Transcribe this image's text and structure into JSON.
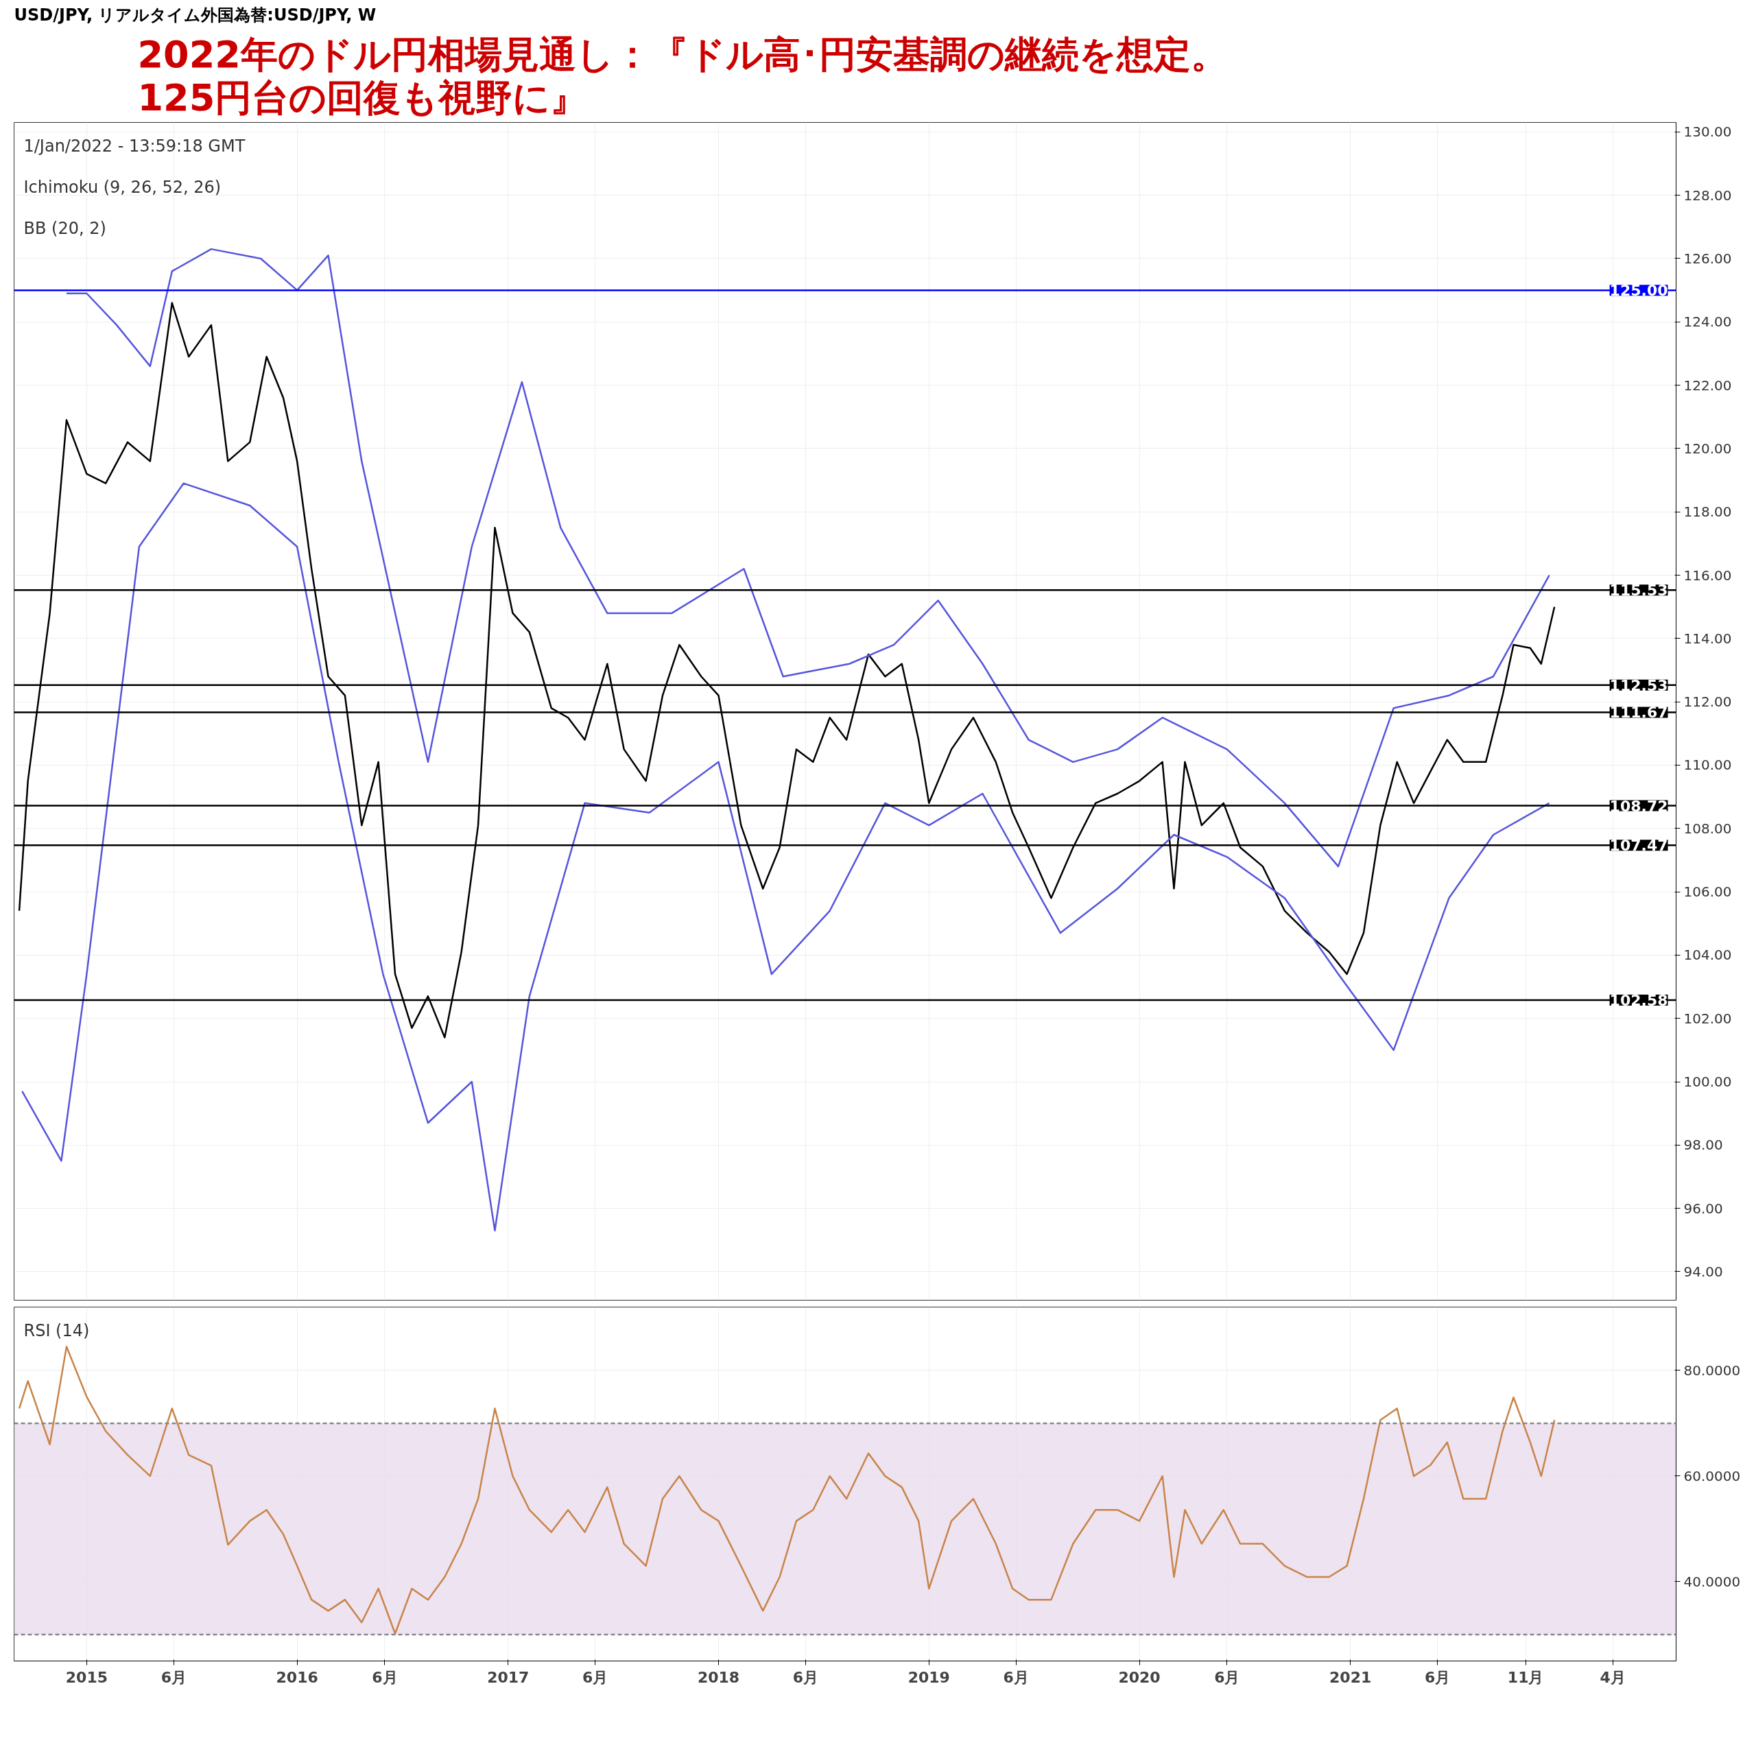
{
  "chart_data": [
    {
      "type": "line",
      "title": "2022年のドル円相場見通し：『ドル高･円安基調の継続を想定。\n125円台の回復も視野に』",
      "subtitle": "USD/JPY, リアルタイム外国為替:USD/JPY, W",
      "annotations": [
        "1/Jan/2022 - 13:59:18 GMT",
        "Ichimoku (9, 26, 52, 26)",
        "BB (20, 2)"
      ],
      "xlim": [
        "2014-08-28",
        "2022-07-20"
      ],
      "xticks": [
        {
          "value": "2015-01-01",
          "label": null
        },
        {
          "value": "2015-06-01",
          "label": null
        },
        {
          "value": "2016-01-01",
          "label": null
        },
        {
          "value": "2016-06-01",
          "label": null
        },
        {
          "value": "2017-01-01",
          "label": null
        },
        {
          "value": "2017-06-01",
          "label": null
        },
        {
          "value": "2018-01-01",
          "label": null
        },
        {
          "value": "2018-06-01",
          "label": null
        },
        {
          "value": "2019-01-01",
          "label": null
        },
        {
          "value": "2019-06-01",
          "label": null
        },
        {
          "value": "2020-01-01",
          "label": null
        },
        {
          "value": "2020-06-01",
          "label": null
        },
        {
          "value": "2021-01-01",
          "label": null
        },
        {
          "value": "2021-06-01",
          "label": null
        },
        {
          "value": "2021-11-01",
          "label": null
        },
        {
          "value": "2022-04-01",
          "label": null
        }
      ],
      "ylim": [
        93.1,
        130.3
      ],
      "yticks": [
        {
          "value": 94,
          "label": "94.00"
        },
        {
          "value": 96,
          "label": "96.00"
        },
        {
          "value": 98,
          "label": "98.00"
        },
        {
          "value": 100,
          "label": "100.00"
        },
        {
          "value": 102,
          "label": "102.00"
        },
        {
          "value": 104,
          "label": "104.00"
        },
        {
          "value": 106,
          "label": "106.00"
        },
        {
          "value": 108,
          "label": "108.00"
        },
        {
          "value": 110,
          "label": "110.00"
        },
        {
          "value": 112,
          "label": "112.00"
        },
        {
          "value": 114,
          "label": "114.00"
        },
        {
          "value": 116,
          "label": "116.00"
        },
        {
          "value": 118,
          "label": "118.00"
        },
        {
          "value": 120,
          "label": "120.00"
        },
        {
          "value": 122,
          "label": "122.00"
        },
        {
          "value": 124,
          "label": "124.00"
        },
        {
          "value": 126,
          "label": "126.00"
        },
        {
          "value": 128,
          "label": "128.00"
        },
        {
          "value": 130,
          "label": "130.00"
        }
      ],
      "tick_labels": "y",
      "grid": true,
      "ref_lines": [
        {
          "axis": "y",
          "value": 125,
          "label": "125.00",
          "color": "#0000ff"
        },
        {
          "axis": "y",
          "value": 115.53,
          "label": "115.53",
          "color": "#000000"
        },
        {
          "axis": "y",
          "value": 112.53,
          "label": "112.53",
          "color": "#000000"
        },
        {
          "axis": "y",
          "value": 111.67,
          "label": "111.67",
          "color": "#000000"
        },
        {
          "axis": "y",
          "value": 108.72,
          "label": "108.72",
          "color": "#000000"
        },
        {
          "axis": "y",
          "value": 107.47,
          "label": "107.47",
          "color": "#000000"
        },
        {
          "axis": "y",
          "value": 102.58,
          "label": "102.58",
          "color": "#000000"
        }
      ],
      "series": [
        {
          "color": "#000000",
          "x": [
            "2014-09-06",
            "2014-09-21",
            "2014-10-29",
            "2014-11-27",
            "2015-01-01",
            "2015-02-03",
            "2015-03-13",
            "2015-04-21",
            "2015-05-29",
            "2015-06-27",
            "2015-08-05",
            "2015-09-03",
            "2015-10-11",
            "2015-11-09",
            "2015-12-08",
            "2016-01-01",
            "2016-01-26",
            "2016-02-24",
            "2016-03-24",
            "2016-04-22",
            "2016-05-21",
            "2016-06-19",
            "2016-07-18",
            "2016-08-15",
            "2016-09-13",
            "2016-10-12",
            "2016-11-10",
            "2016-12-09",
            "2017-01-09",
            "2017-02-07",
            "2017-03-17",
            "2017-04-15",
            "2017-05-14",
            "2017-06-22",
            "2017-07-21",
            "2017-08-28",
            "2017-09-26",
            "2017-10-25",
            "2017-12-02",
            "2018-01-01",
            "2018-02-09",
            "2018-03-19",
            "2018-04-17",
            "2018-05-16",
            "2018-06-14",
            "2018-07-13",
            "2018-08-11",
            "2018-09-18",
            "2018-10-17",
            "2018-11-15",
            "2018-12-14",
            "2019-01-01",
            "2019-02-09",
            "2019-03-19",
            "2019-04-27",
            "2019-05-26",
            "2019-06-23",
            "2019-08-01",
            "2019-09-08",
            "2019-10-17",
            "2019-11-24",
            "2020-01-01",
            "2020-02-10",
            "2020-03-01",
            "2020-03-20",
            "2020-04-18",
            "2020-05-26",
            "2020-06-24",
            "2020-08-02",
            "2020-09-09",
            "2020-10-18",
            "2020-11-25",
            "2020-12-26",
            "2021-01-24",
            "2021-02-22",
            "2021-03-23",
            "2021-04-21",
            "2021-05-20",
            "2021-06-18",
            "2021-07-16",
            "2021-08-24",
            "2021-09-22",
            "2021-10-11",
            "2021-11-09",
            "2021-11-28",
            "2021-12-21"
          ],
          "values": [
            105.4,
            109.5,
            114.8,
            120.9,
            119.2,
            118.9,
            120.2,
            119.6,
            124.6,
            122.9,
            123.9,
            119.6,
            120.2,
            122.9,
            121.6,
            119.6,
            116.2,
            112.8,
            112.2,
            108.1,
            110.1,
            103.4,
            101.7,
            102.7,
            101.4,
            104.1,
            108.1,
            117.5,
            114.8,
            114.2,
            111.8,
            111.5,
            110.8,
            113.2,
            110.5,
            109.5,
            112.2,
            113.8,
            112.8,
            112.2,
            108.1,
            106.1,
            107.4,
            110.5,
            110.1,
            111.5,
            110.8,
            113.5,
            112.8,
            113.2,
            110.8,
            108.8,
            110.5,
            111.5,
            110.1,
            108.5,
            107.4,
            105.8,
            107.4,
            108.8,
            109.1,
            109.5,
            110.1,
            106.1,
            110.1,
            108.1,
            108.8,
            107.4,
            106.8,
            105.4,
            104.7,
            104.1,
            103.4,
            104.7,
            108.1,
            110.1,
            108.8,
            109.8,
            110.8,
            110.1,
            110.1,
            112.2,
            113.8,
            113.7,
            113.2,
            115.0
          ]
        },
        {
          "color": "#5555dd",
          "x": [
            "2014-11-27",
            "2015-01-01",
            "2015-02-22",
            "2015-04-21",
            "2015-05-29",
            "2015-08-05",
            "2015-10-30",
            "2016-01-01",
            "2016-02-24",
            "2016-04-22",
            "2016-08-15",
            "2016-10-30",
            "2017-01-25",
            "2017-04-02",
            "2017-06-22",
            "2017-10-12",
            "2018-02-14",
            "2018-04-23",
            "2018-08-16",
            "2018-11-01",
            "2019-01-17",
            "2019-04-04",
            "2019-06-23",
            "2019-09-08",
            "2019-11-24",
            "2020-02-10",
            "2020-06-01",
            "2020-09-09",
            "2020-12-11",
            "2021-03-17",
            "2021-06-21",
            "2021-09-06",
            "2021-12-12"
          ],
          "values": [
            124.9,
            124.9,
            123.9,
            122.6,
            125.6,
            126.3,
            126.0,
            125.0,
            126.1,
            119.6,
            110.1,
            116.9,
            122.1,
            117.5,
            114.8,
            114.8,
            116.2,
            112.8,
            113.2,
            113.8,
            115.2,
            113.2,
            110.8,
            110.1,
            110.5,
            111.5,
            110.5,
            108.8,
            106.8,
            111.8,
            112.2,
            112.8,
            116.0
          ]
        },
        {
          "color": "#5555dd",
          "x": [
            "2014-09-11",
            "2014-11-18",
            "2015-01-01",
            "2015-04-02",
            "2015-06-18",
            "2015-10-11",
            "2016-01-01",
            "2016-03-13",
            "2016-05-29",
            "2016-08-15",
            "2016-10-30",
            "2016-12-09",
            "2017-02-07",
            "2017-05-14",
            "2017-09-03",
            "2018-01-01",
            "2018-04-03",
            "2018-07-13",
            "2018-10-17",
            "2019-01-01",
            "2019-04-04",
            "2019-08-17",
            "2019-11-24",
            "2020-03-01",
            "2020-06-01",
            "2020-09-09",
            "2020-12-11",
            "2021-03-17",
            "2021-06-21",
            "2021-09-06",
            "2021-12-12"
          ],
          "values": [
            99.7,
            97.5,
            103.4,
            116.9,
            118.9,
            118.2,
            116.9,
            110.1,
            103.4,
            98.7,
            100.0,
            95.3,
            102.7,
            108.8,
            108.5,
            110.1,
            103.4,
            105.4,
            108.8,
            108.1,
            109.1,
            104.7,
            106.1,
            107.8,
            107.1,
            105.8,
            103.4,
            101.0,
            105.8,
            107.8,
            108.8
          ]
        }
      ]
    },
    {
      "type": "line",
      "annotations": [
        "RSI (14)"
      ],
      "xlim": [
        "2014-08-28",
        "2022-07-20"
      ],
      "xticks": [
        {
          "value": "2015-01-01",
          "label": "2015"
        },
        {
          "value": "2015-06-01",
          "label": "6月"
        },
        {
          "value": "2016-01-01",
          "label": "2016"
        },
        {
          "value": "2016-06-01",
          "label": "6月"
        },
        {
          "value": "2017-01-01",
          "label": "2017"
        },
        {
          "value": "2017-06-01",
          "label": "6月"
        },
        {
          "value": "2018-01-01",
          "label": "2018"
        },
        {
          "value": "2018-06-01",
          "label": "6月"
        },
        {
          "value": "2019-01-01",
          "label": "2019"
        },
        {
          "value": "2019-06-01",
          "label": "6月"
        },
        {
          "value": "2020-01-01",
          "label": "2020"
        },
        {
          "value": "2020-06-01",
          "label": "6月"
        },
        {
          "value": "2021-01-01",
          "label": "2021"
        },
        {
          "value": "2021-06-01",
          "label": "6月"
        },
        {
          "value": "2021-11-01",
          "label": "11月"
        },
        {
          "value": "2022-04-01",
          "label": "4月"
        }
      ],
      "ylim": [
        25,
        92
      ],
      "yticks": [
        {
          "value": 40,
          "label": "40.0000"
        },
        {
          "value": 60,
          "label": "60.0000"
        },
        {
          "value": 80,
          "label": "80.0000"
        }
      ],
      "grid": true,
      "bands": [
        {
          "axis": "y",
          "from": 30,
          "to": 70,
          "color": "#eadcec"
        }
      ],
      "ref_lines": [
        {
          "axis": "y",
          "value": 70,
          "color": "#888888",
          "line_style": "dashed"
        },
        {
          "axis": "y",
          "value": 30,
          "color": "#888888",
          "line_style": "dashed"
        }
      ],
      "series": [
        {
          "color": "#c8844a",
          "x": [
            "2014-09-06",
            "2014-09-21",
            "2014-10-29",
            "2014-11-27",
            "2015-01-01",
            "2015-02-03",
            "2015-03-13",
            "2015-04-21",
            "2015-05-29",
            "2015-06-27",
            "2015-08-05",
            "2015-09-03",
            "2015-10-11",
            "2015-11-09",
            "2015-12-08",
            "2016-01-01",
            "2016-01-26",
            "2016-02-24",
            "2016-03-24",
            "2016-04-22",
            "2016-05-21",
            "2016-06-19",
            "2016-07-18",
            "2016-08-15",
            "2016-09-13",
            "2016-10-12",
            "2016-11-10",
            "2016-12-09",
            "2017-01-09",
            "2017-02-07",
            "2017-03-17",
            "2017-04-15",
            "2017-05-14",
            "2017-06-22",
            "2017-07-21",
            "2017-08-28",
            "2017-09-26",
            "2017-10-25",
            "2017-12-02",
            "2018-01-01",
            "2018-02-09",
            "2018-03-19",
            "2018-04-17",
            "2018-05-16",
            "2018-06-14",
            "2018-07-13",
            "2018-08-11",
            "2018-09-18",
            "2018-10-17",
            "2018-11-15",
            "2018-12-14",
            "2019-01-01",
            "2019-02-09",
            "2019-03-19",
            "2019-04-27",
            "2019-05-26",
            "2019-06-23",
            "2019-08-01",
            "2019-09-08",
            "2019-10-17",
            "2019-11-24",
            "2020-01-01",
            "2020-02-10",
            "2020-03-01",
            "2020-03-20",
            "2020-04-18",
            "2020-05-26",
            "2020-06-24",
            "2020-08-02",
            "2020-09-09",
            "2020-10-18",
            "2020-11-25",
            "2020-12-26",
            "2021-01-24",
            "2021-02-22",
            "2021-03-23",
            "2021-04-21",
            "2021-05-20",
            "2021-06-18",
            "2021-07-16",
            "2021-08-24",
            "2021-09-22",
            "2021-10-11",
            "2021-11-09",
            "2021-11-28",
            "2021-12-21"
          ],
          "values": [
            72.8,
            78,
            66,
            84.5,
            75,
            68.5,
            64,
            60,
            72.8,
            64,
            62,
            47,
            51.5,
            53.6,
            49,
            43,
            36.6,
            34.5,
            36.6,
            32.3,
            38.7,
            30.2,
            38.7,
            36.6,
            40.9,
            47.2,
            55.7,
            72.8,
            60,
            53.6,
            49.4,
            53.6,
            49.4,
            57.9,
            47.2,
            43,
            55.7,
            60,
            53.6,
            51.5,
            43,
            34.5,
            40.9,
            51.5,
            53.6,
            60,
            55.7,
            64.3,
            60,
            57.9,
            51.5,
            38.7,
            51.5,
            55.7,
            47.2,
            38.7,
            36.6,
            36.6,
            47.2,
            53.6,
            53.6,
            51.5,
            60,
            40.9,
            53.6,
            47.2,
            53.6,
            47.2,
            47.2,
            43,
            40.9,
            40.9,
            43,
            55.7,
            70.6,
            72.8,
            60,
            62.1,
            66.4,
            55.7,
            55.7,
            68.5,
            74.9,
            66.4,
            60,
            70.6
          ]
        }
      ]
    }
  ]
}
